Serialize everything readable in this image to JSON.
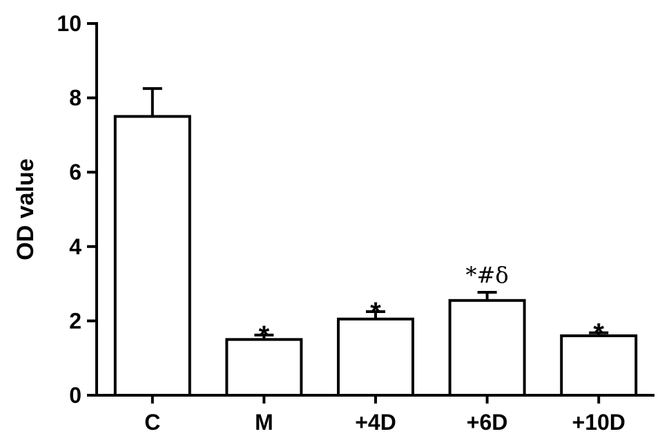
{
  "chart_data": {
    "type": "bar",
    "title": "",
    "xlabel": "",
    "ylabel": "OD value",
    "ylim": [
      0,
      10
    ],
    "yticks": [
      "0",
      "2",
      "4",
      "6",
      "8",
      "10"
    ],
    "categories": [
      "C",
      "M",
      "+4D",
      "+6D",
      "+10D"
    ],
    "values": [
      7.5,
      1.5,
      2.05,
      2.55,
      1.6
    ],
    "errors": [
      0.75,
      0.12,
      0.2,
      0.22,
      0.08
    ],
    "annotations": [
      "",
      "*",
      "*",
      "*#δ",
      "*"
    ],
    "bar_color": "#ffffff",
    "edge_color": "#000000",
    "grid": false
  }
}
